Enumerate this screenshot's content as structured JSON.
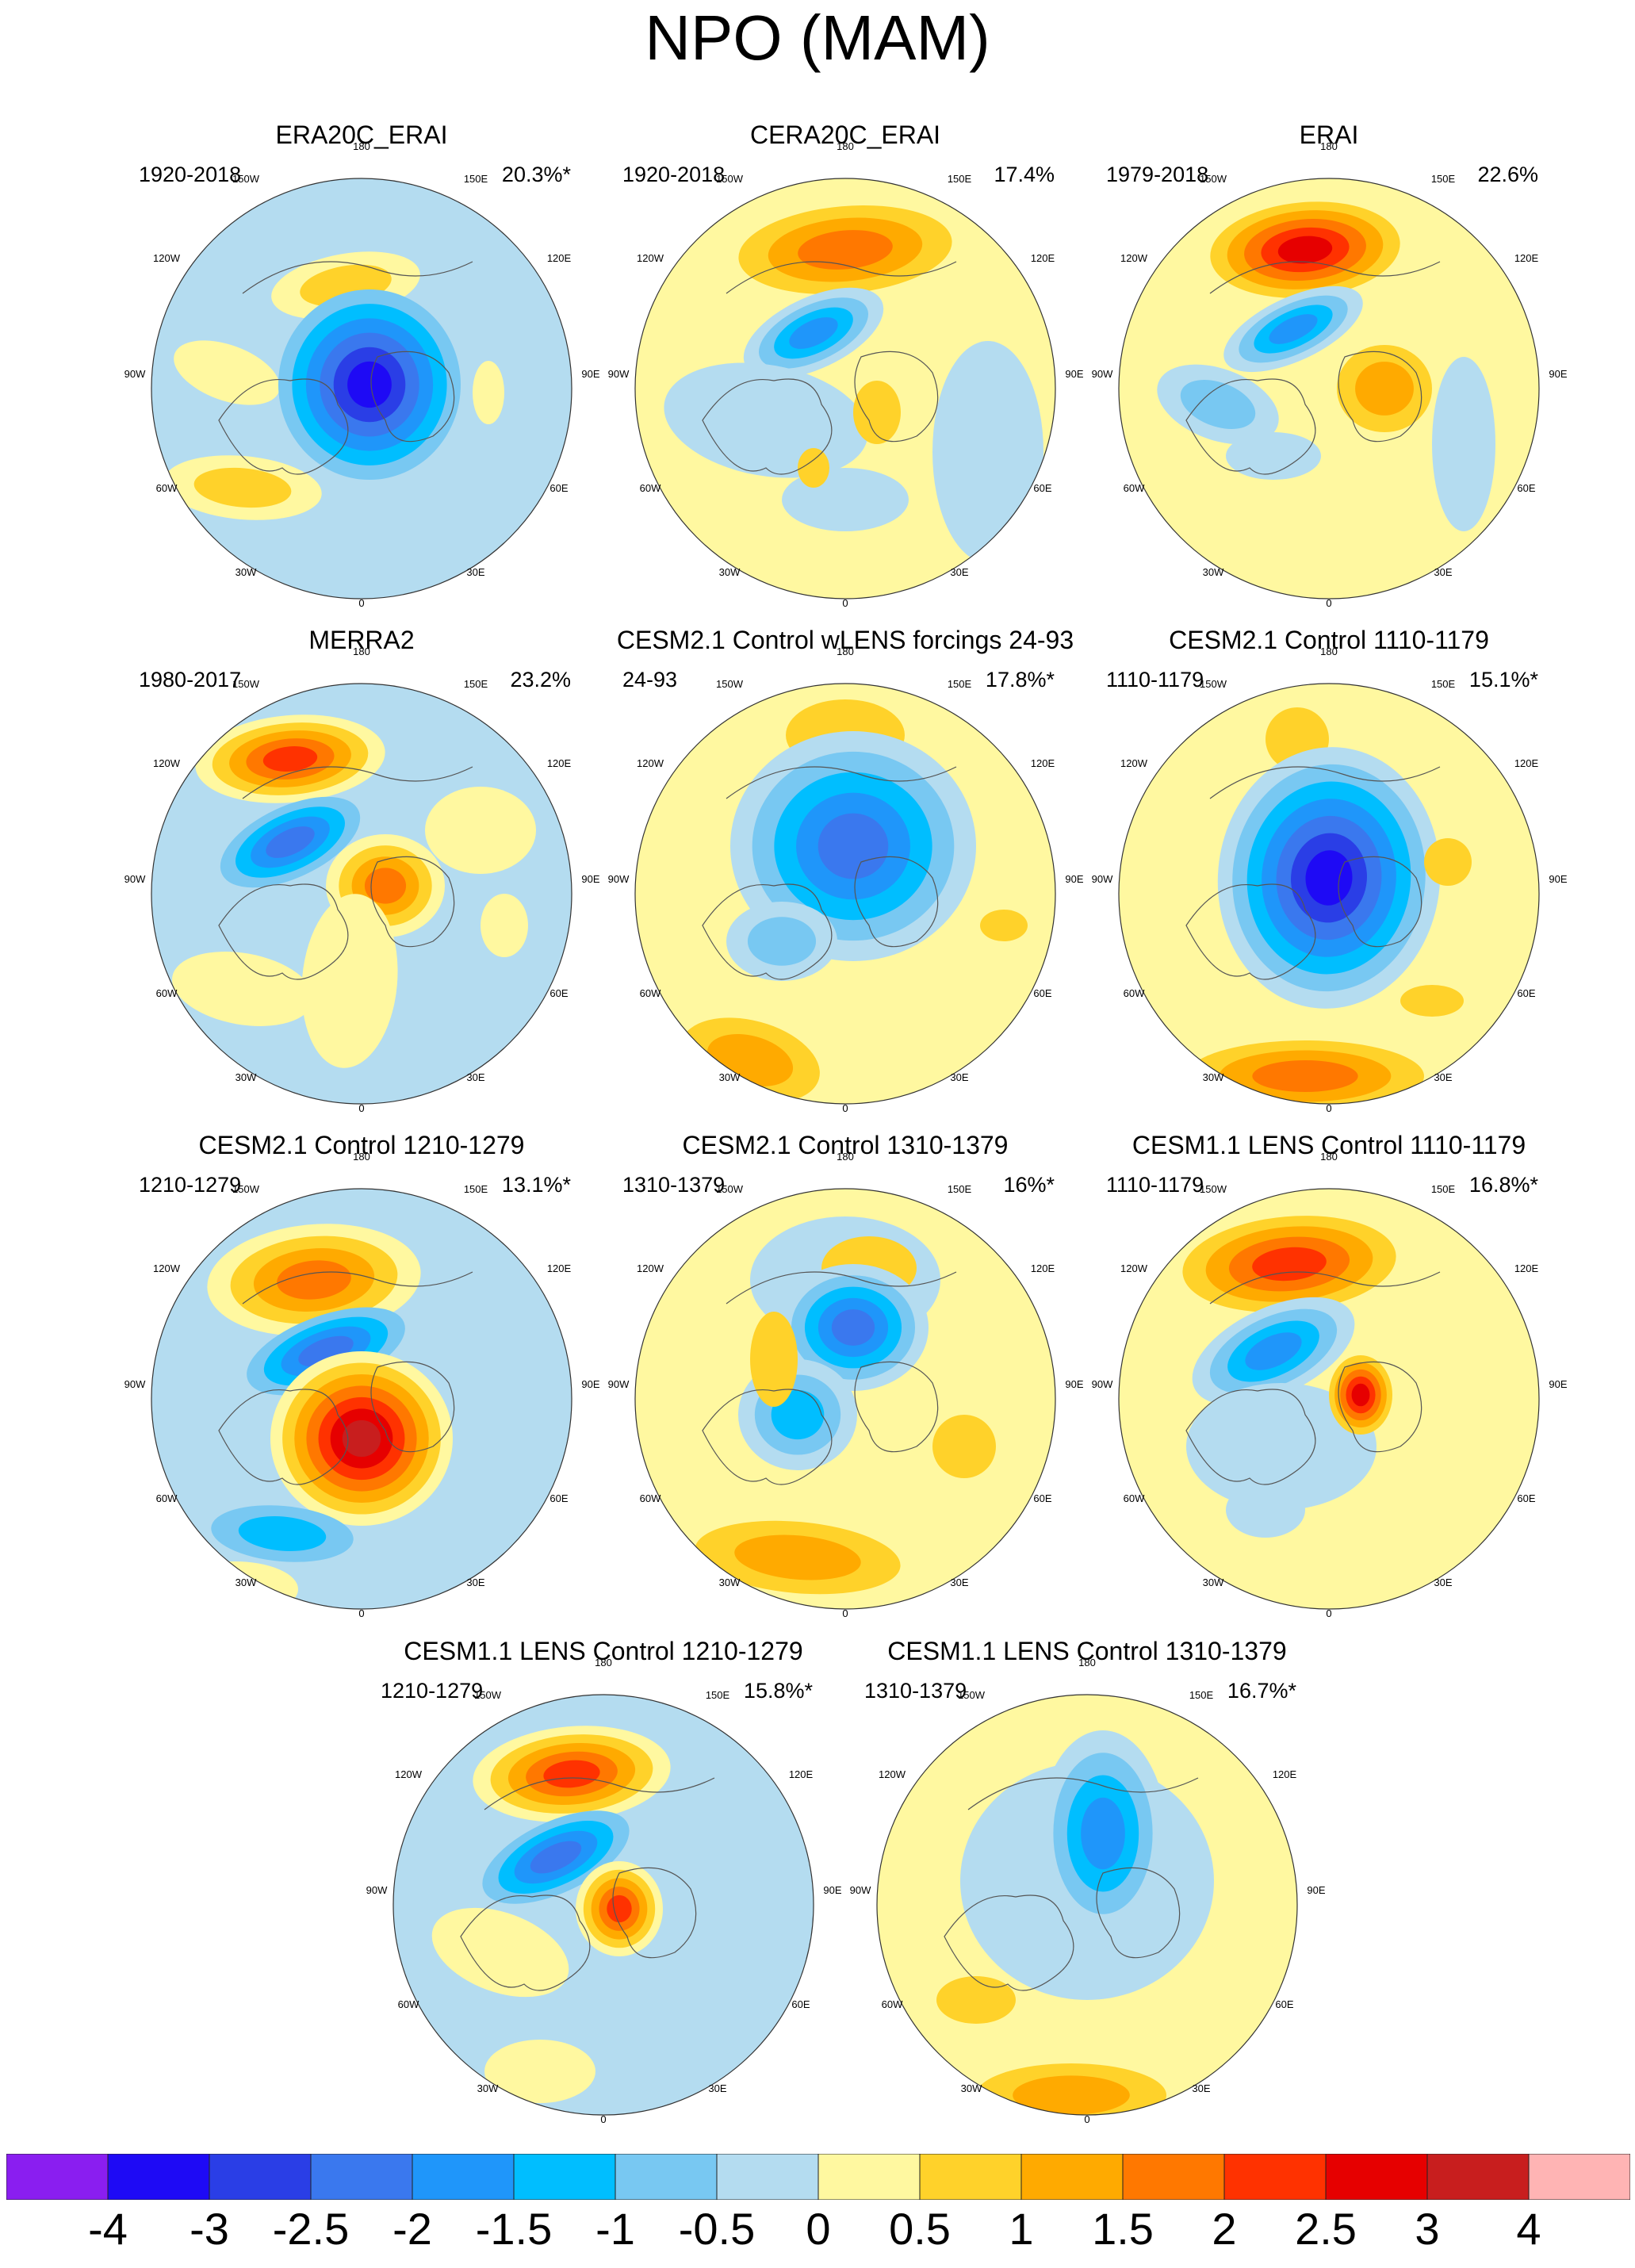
{
  "figure": {
    "title": "NPO (MAM)",
    "longitude_labels": {
      "180": "180",
      "150E": "150E",
      "120E": "120E",
      "90E": "90E",
      "60E": "60E",
      "30E": "30E",
      "0": "0",
      "30W": "30W",
      "60W": "60W",
      "90W": "90W",
      "120W": "120W",
      "150W": "150W"
    }
  },
  "panels": [
    {
      "title": "ERA20C_ERAI",
      "period": "1920-2018",
      "percent": "20.3%*"
    },
    {
      "title": "CERA20C_ERAI",
      "period": "1920-2018",
      "percent": "17.4%"
    },
    {
      "title": "ERAI",
      "period": "1979-2018",
      "percent": "22.6%"
    },
    {
      "title": "MERRA2",
      "period": "1980-2017",
      "percent": "23.2%"
    },
    {
      "title": "CESM2.1 Control wLENS forcings 24-93",
      "period": "24-93",
      "percent": "17.8%*"
    },
    {
      "title": "CESM2.1 Control 1110-1179",
      "period": "1110-1179",
      "percent": "15.1%*"
    },
    {
      "title": "CESM2.1 Control 1210-1279",
      "period": "1210-1279",
      "percent": "13.1%*"
    },
    {
      "title": "CESM2.1 Control 1310-1379",
      "period": "1310-1379",
      "percent": "16%*"
    },
    {
      "title": "CESM1.1 LENS Control 1110-1179",
      "period": "1110-1179",
      "percent": "16.8%*"
    },
    {
      "title": "CESM1.1 LENS Control 1210-1279",
      "period": "1210-1279",
      "percent": "15.8%*"
    },
    {
      "title": "CESM1.1 LENS Control 1310-1379",
      "period": "1310-1379",
      "percent": "16.7%*"
    }
  ],
  "colorbar": {
    "labels": [
      "-4",
      "-3",
      "-2.5",
      "-2",
      "-1.5",
      "-1",
      "-0.5",
      "0",
      "0.5",
      "1",
      "1.5",
      "2",
      "2.5",
      "3",
      "4"
    ],
    "colors": [
      "#8a1ef0",
      "#1e0af5",
      "#2a3ee6",
      "#3a78ee",
      "#1f96fa",
      "#00beff",
      "#78c8f2",
      "#b4dcf0",
      "#fff8a0",
      "#ffd22a",
      "#ffaa00",
      "#ff7800",
      "#ff3200",
      "#e60000",
      "#c81e1e",
      "#ffb4b4"
    ]
  }
}
